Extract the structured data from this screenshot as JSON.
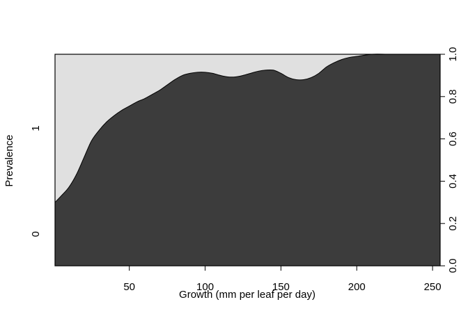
{
  "chart_data": {
    "type": "area",
    "title": "",
    "xlabel": "Growth (mm per leaf per day)",
    "ylabel": "Prevalence",
    "xlim": [
      1,
      255
    ],
    "ylim": [
      0,
      1
    ],
    "x_ticks": [
      50,
      100,
      150,
      200,
      250
    ],
    "y_right_ticks": [
      0.0,
      0.2,
      0.4,
      0.6,
      0.8,
      1.0
    ],
    "y_right_tick_labels": [
      "0.0",
      "0.2",
      "0.4",
      "0.6",
      "0.8",
      "1.0"
    ],
    "y_left_categories": [
      {
        "label": "0",
        "position": 0.15
      },
      {
        "label": "1",
        "position": 0.65
      }
    ],
    "grid": false,
    "series": [
      {
        "name": "1",
        "color": "#3c3c3c",
        "x": [
          1,
          5,
          10,
          15,
          20,
          25,
          30,
          35,
          40,
          45,
          50,
          55,
          60,
          65,
          70,
          75,
          80,
          85,
          90,
          95,
          100,
          105,
          110,
          115,
          120,
          125,
          130,
          135,
          140,
          145,
          150,
          155,
          160,
          165,
          170,
          175,
          180,
          185,
          190,
          195,
          200,
          210,
          220,
          230,
          240,
          255
        ],
        "values": [
          0.3,
          0.33,
          0.37,
          0.43,
          0.51,
          0.59,
          0.64,
          0.68,
          0.71,
          0.735,
          0.755,
          0.775,
          0.79,
          0.81,
          0.83,
          0.855,
          0.88,
          0.9,
          0.91,
          0.915,
          0.915,
          0.91,
          0.9,
          0.893,
          0.893,
          0.9,
          0.91,
          0.92,
          0.925,
          0.925,
          0.91,
          0.89,
          0.88,
          0.88,
          0.89,
          0.91,
          0.94,
          0.96,
          0.975,
          0.985,
          0.99,
          1.0,
          1.0,
          1.0,
          1.0,
          1.0
        ]
      },
      {
        "name": "0",
        "color": "#e0e0e0"
      }
    ]
  }
}
